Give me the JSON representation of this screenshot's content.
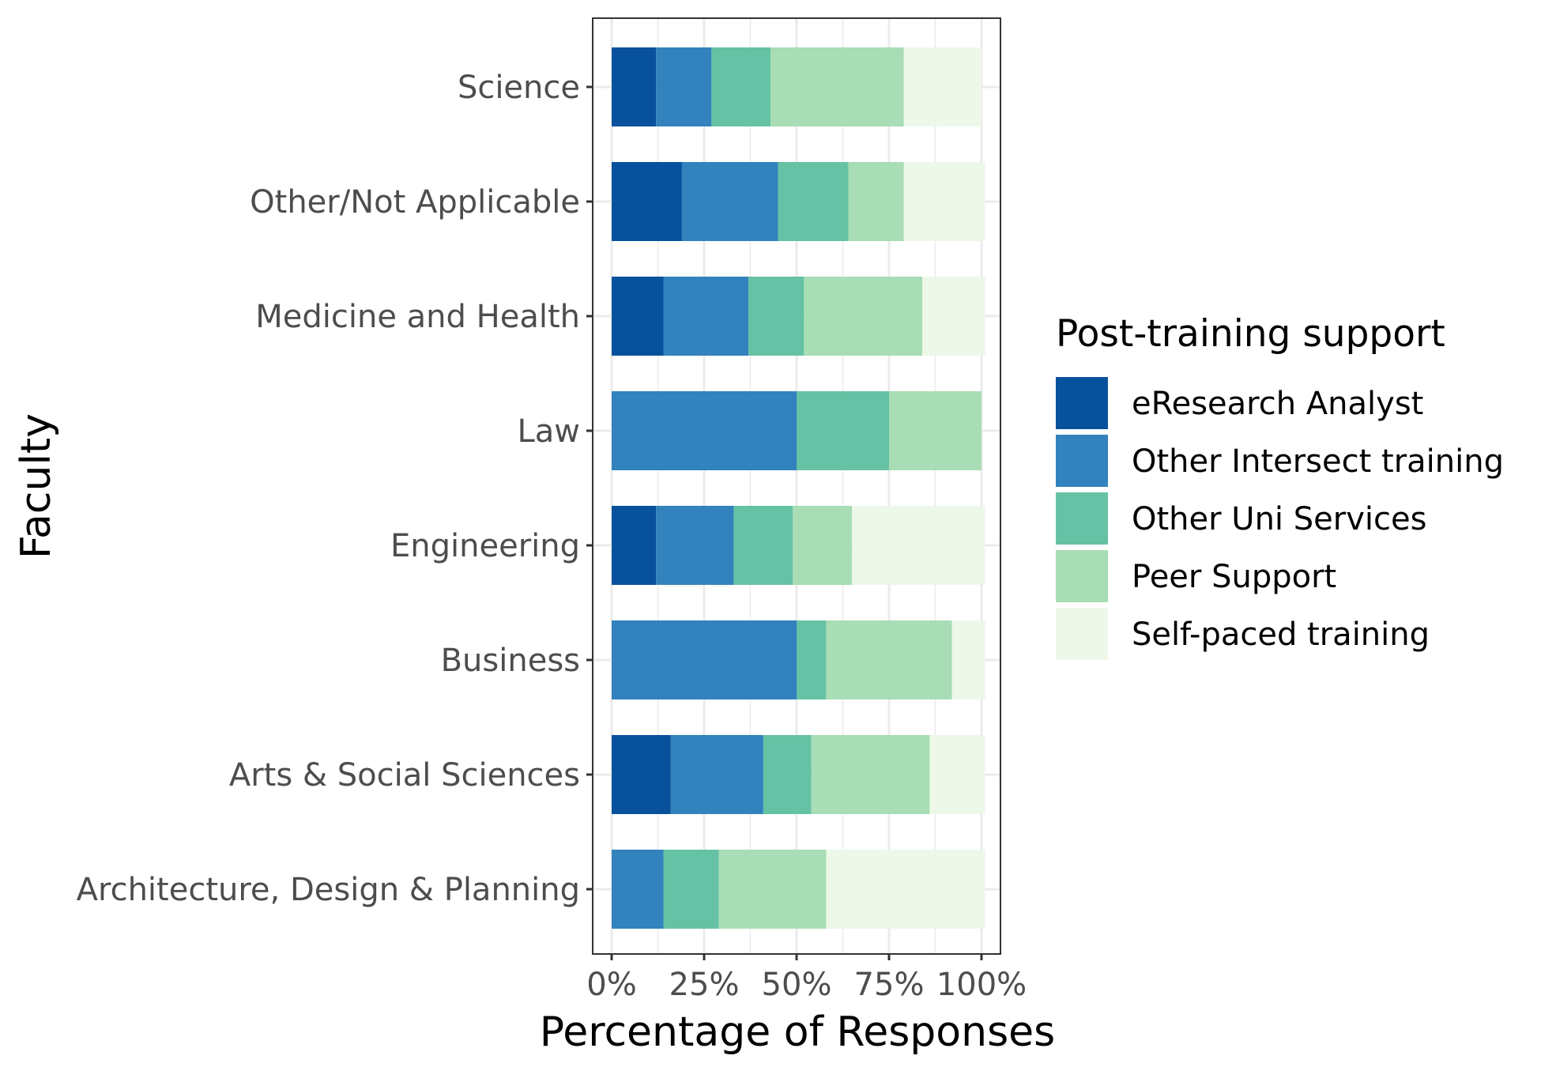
{
  "chart_data": {
    "type": "bar",
    "orientation": "horizontal",
    "stacked": true,
    "percent": true,
    "xlabel": "Percentage of Responses",
    "ylabel": "Faculty",
    "xlim": [
      0,
      1
    ],
    "x_ticks": [
      "0%",
      "25%",
      "50%",
      "75%",
      "100%"
    ],
    "grid": true,
    "legend_position": "right",
    "categories": [
      "Science",
      "Other/Not Applicable",
      "Medicine and Health",
      "Law",
      "Engineering",
      "Business",
      "Arts & Social Sciences",
      "Architecture, Design & Planning"
    ],
    "legend_title": "Post-training support",
    "series": [
      {
        "name": "eResearch Analyst",
        "color": "#08519c",
        "values": [
          0.12,
          0.19,
          0.14,
          0.0,
          0.12,
          0.0,
          0.16,
          0.0
        ]
      },
      {
        "name": "Other Intersect training",
        "color": "#3182bd",
        "values": [
          0.15,
          0.26,
          0.23,
          0.5,
          0.21,
          0.5,
          0.25,
          0.14
        ]
      },
      {
        "name": "Other Uni Services",
        "color": "#66c2a4",
        "values": [
          0.16,
          0.19,
          0.15,
          0.25,
          0.16,
          0.08,
          0.13,
          0.15
        ]
      },
      {
        "name": "Peer Support",
        "color": "#a8ddb5",
        "values": [
          0.36,
          0.15,
          0.32,
          0.25,
          0.16,
          0.34,
          0.32,
          0.29
        ]
      },
      {
        "name": "Self-paced training",
        "color": "#edf8e9",
        "values": [
          0.21,
          0.22,
          0.17,
          0.0,
          0.36,
          0.09,
          0.15,
          0.43
        ]
      }
    ]
  }
}
